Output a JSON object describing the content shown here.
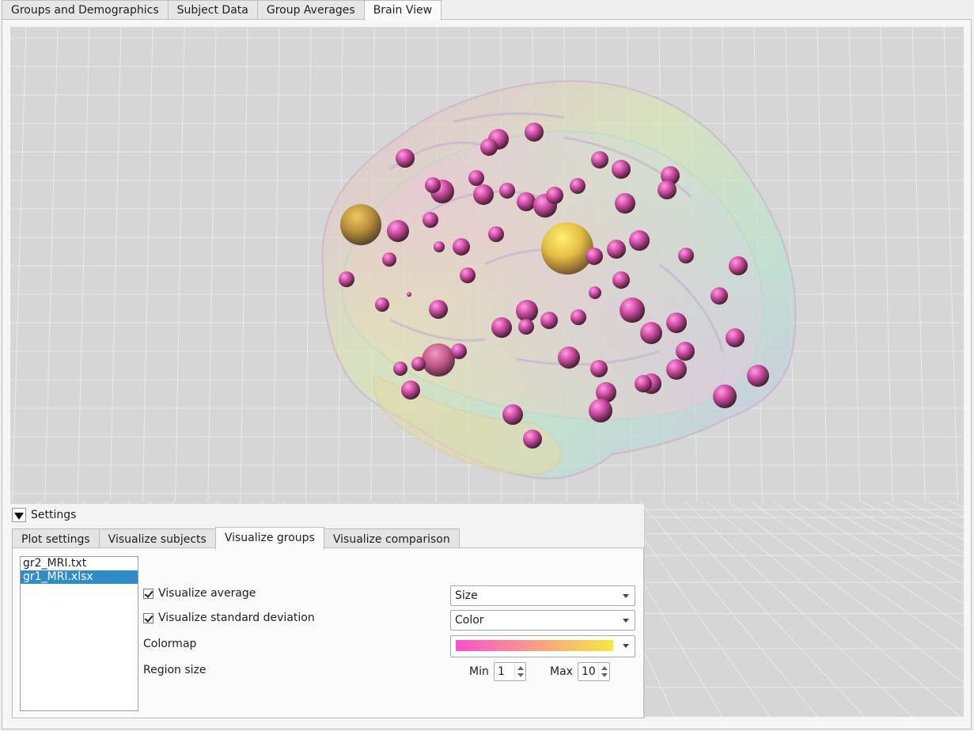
{
  "top_tabs": [
    {
      "label": "Groups and Demographics"
    },
    {
      "label": "Subject Data"
    },
    {
      "label": "Group Averages"
    },
    {
      "label": "Brain View",
      "active": true
    }
  ],
  "viewport": {
    "background": "#d6d6d6",
    "grid_color": "#eaeaea",
    "large_regions": [
      {
        "color": "#c9a24a"
      },
      {
        "color": "#e8c34a"
      },
      {
        "color": "#c25a8a"
      }
    ],
    "region_color": "#d04ea6"
  },
  "settings": {
    "title": "Settings",
    "tabs": [
      {
        "label": "Plot settings"
      },
      {
        "label": "Visualize subjects"
      },
      {
        "label": "Visualize groups",
        "active": true
      },
      {
        "label": "Visualize comparison"
      }
    ],
    "files": [
      {
        "name": "gr2_MRI.txt",
        "selected": false
      },
      {
        "name": "gr1_MRI.xlsx",
        "selected": true
      }
    ],
    "visualize_average": {
      "label": "Visualize average",
      "checked": true,
      "mode": "Size"
    },
    "visualize_std": {
      "label": "Visualize standard deviation",
      "checked": true,
      "mode": "Color"
    },
    "colormap": {
      "label": "Colormap",
      "from": "#ff4fd0",
      "to": "#f6ea3c"
    },
    "region_size": {
      "label": "Region size",
      "min_label": "Min",
      "min": "1",
      "max_label": "Max",
      "max": "10"
    }
  }
}
